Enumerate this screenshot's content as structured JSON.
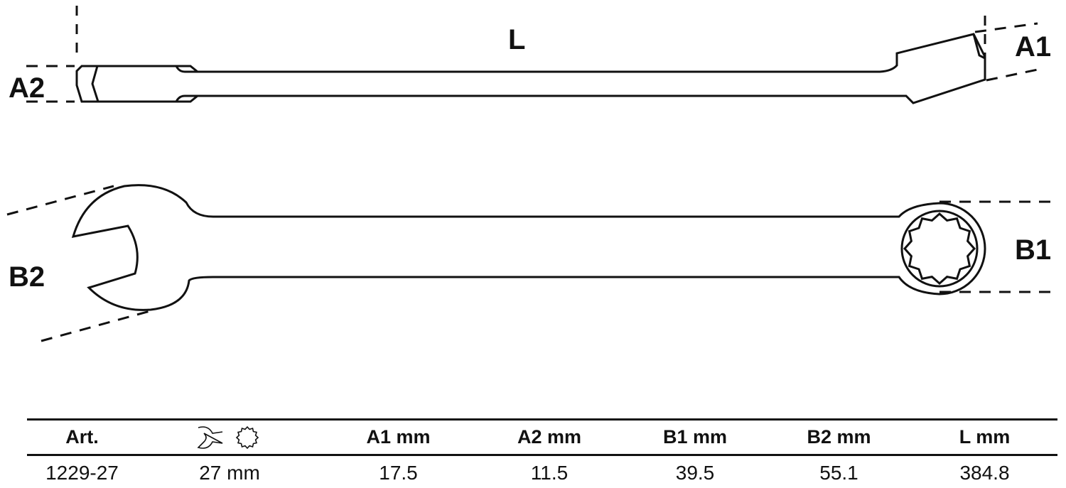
{
  "labels": {
    "L": "L",
    "A1": "A1",
    "A2": "A2",
    "B1": "B1",
    "B2": "B2"
  },
  "table": {
    "headers": [
      "Art.",
      "",
      "A1   mm",
      "A2  mm",
      "B1  mm",
      "B2   mm",
      "L   mm"
    ],
    "header_icons": [
      "open-end-wrench-icon",
      "twelve-point-ring-icon"
    ],
    "rows": [
      [
        "1229-27",
        "27 mm",
        "17.5",
        "11.5",
        "39.5",
        "55.1",
        "384.8"
      ]
    ]
  }
}
